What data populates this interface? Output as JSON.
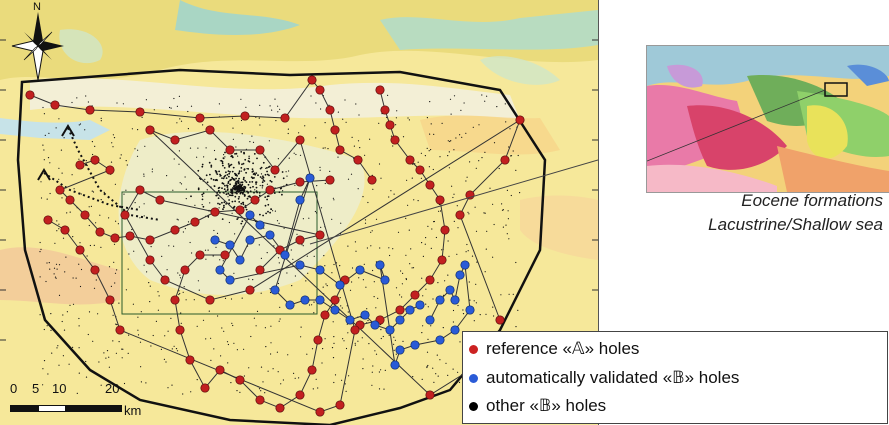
{
  "map": {
    "north_label": "N",
    "scalebar": {
      "ticks": [
        "0",
        "5",
        "10",
        "20"
      ],
      "unit": "km"
    }
  },
  "inset": {
    "caption_line1": "Eocene formations",
    "caption_line2": "Lacustrine/Shallow sea"
  },
  "legend": {
    "items": [
      {
        "label": "reference «𝔸» holes",
        "color": "#cc2222",
        "icon": "red-dot"
      },
      {
        "label": "automatically validated «𝔹» holes",
        "color": "#2a5bd7",
        "icon": "blue-dot"
      },
      {
        "label": "other «𝔹» holes",
        "color": "#000000",
        "icon": "black-dot"
      }
    ]
  }
}
